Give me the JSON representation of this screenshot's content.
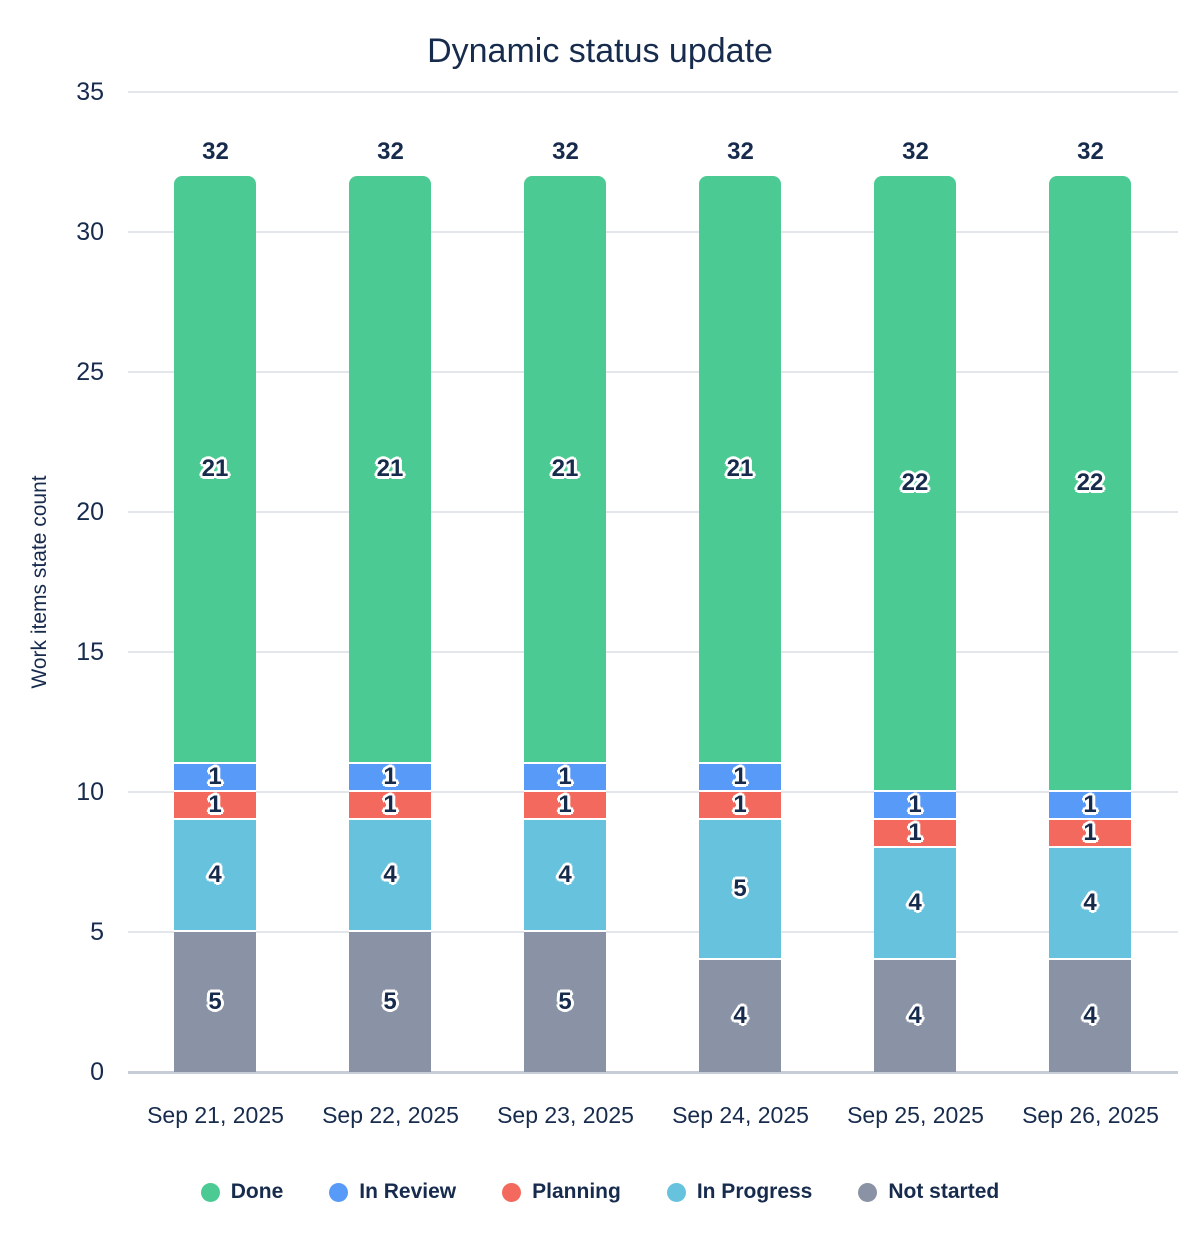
{
  "title": "Dynamic status update",
  "ylabel": "Work items state count",
  "colors": {
    "text": "#172B4D",
    "gridline": "#E3E6EB",
    "axis_line": "#C7CDD6",
    "done": "#4BCB93",
    "in_review": "#579AF7",
    "planning": "#F4695E",
    "in_progress": "#67C2DD",
    "not_started": "#8A93A5"
  },
  "chart_data": {
    "type": "bar",
    "stacked": true,
    "title": "Dynamic status update",
    "xlabel": "",
    "ylabel": "Work items state count",
    "categories": [
      "Sep 21, 2025",
      "Sep 22, 2025",
      "Sep 23, 2025",
      "Sep 24, 2025",
      "Sep 25, 2025",
      "Sep 26, 2025"
    ],
    "series": [
      {
        "name": "Not started",
        "color": "#8A93A5",
        "values": [
          5,
          5,
          5,
          4,
          4,
          4
        ]
      },
      {
        "name": "In Progress",
        "color": "#67C2DD",
        "values": [
          4,
          4,
          4,
          5,
          4,
          4
        ]
      },
      {
        "name": "Planning",
        "color": "#F4695E",
        "values": [
          1,
          1,
          1,
          1,
          1,
          1
        ]
      },
      {
        "name": "In Review",
        "color": "#579AF7",
        "values": [
          1,
          1,
          1,
          1,
          1,
          1
        ]
      },
      {
        "name": "Done",
        "color": "#4BCB93",
        "values": [
          21,
          21,
          21,
          21,
          22,
          22
        ]
      }
    ],
    "totals": [
      32,
      32,
      32,
      32,
      32,
      32
    ],
    "yticks": [
      0,
      5,
      10,
      15,
      20,
      25,
      30,
      35
    ],
    "ylim": [
      0,
      35
    ],
    "grid": true,
    "legend": [
      "Done",
      "In Review",
      "Planning",
      "In Progress",
      "Not started"
    ],
    "legend_position": "bottom"
  }
}
